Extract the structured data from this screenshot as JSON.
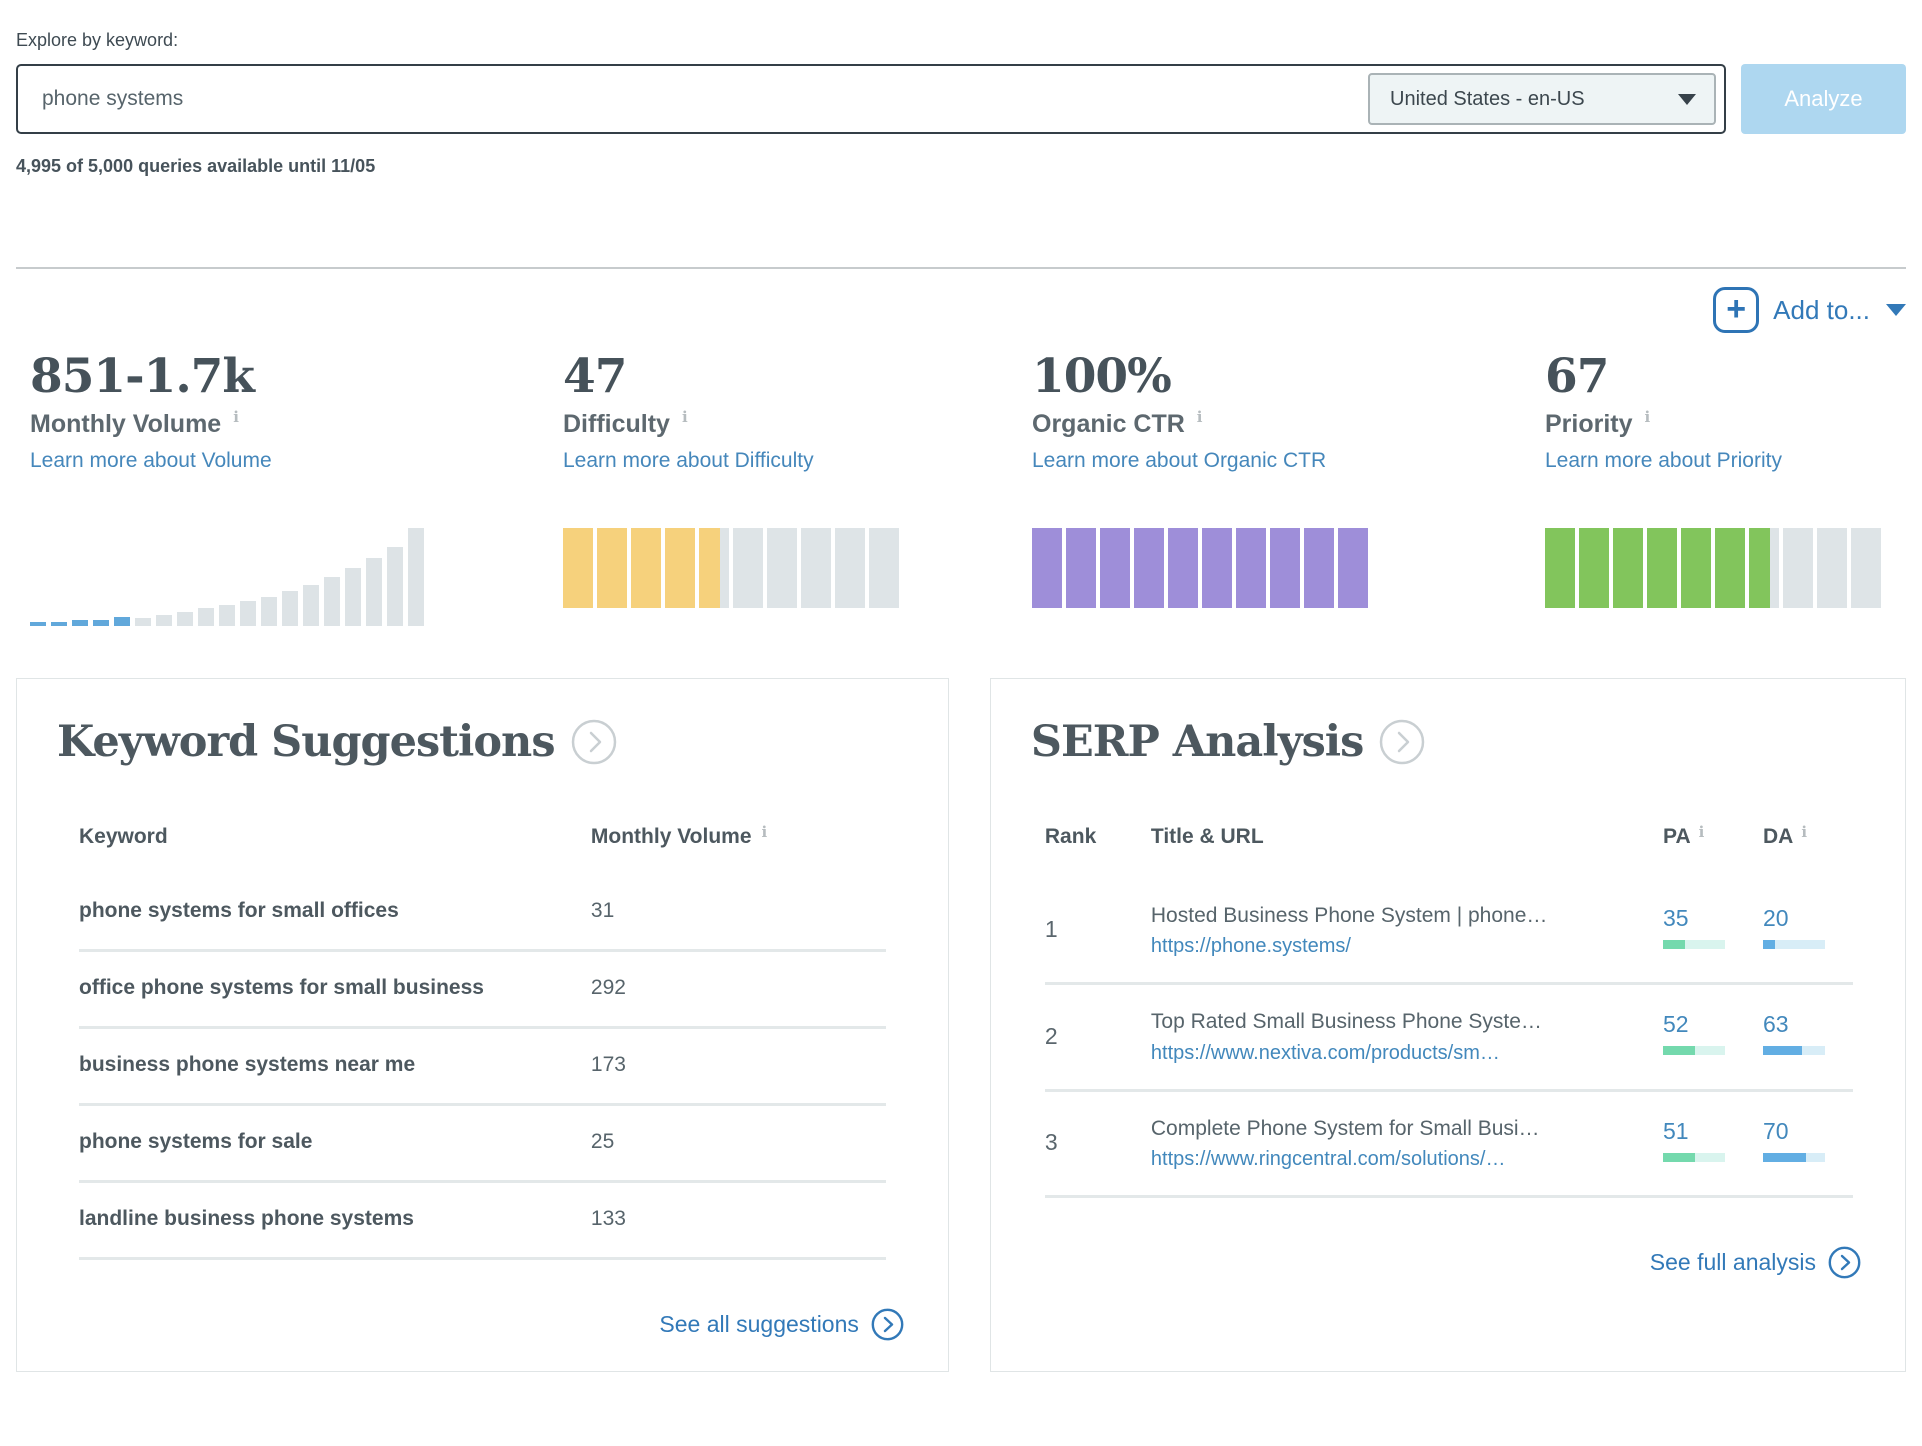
{
  "explore": {
    "label": "Explore by keyword:",
    "keyword_value": "phone systems",
    "locale_selected": "United States - en-US",
    "analyze_label": "Analyze",
    "quota_text": "4,995 of 5,000 queries available until 11/05"
  },
  "add_to": {
    "label": "Add to...",
    "plus": "+"
  },
  "info_icon_glyph": "i",
  "metrics": [
    {
      "value": "851-1.7k",
      "label": "Monthly Volume",
      "learn_link": "Learn more about Volume"
    },
    {
      "value": "47",
      "label": "Difficulty",
      "learn_link": "Learn more about Difficulty"
    },
    {
      "value": "100%",
      "label": "Organic CTR",
      "learn_link": "Learn more about Organic CTR"
    },
    {
      "value": "67",
      "label": "Priority",
      "learn_link": "Learn more about Priority"
    }
  ],
  "chart_data": [
    {
      "id": "monthly-volume-histogram",
      "type": "bar",
      "title": "Monthly Volume distribution (volume bucket highlighted)",
      "values": [
        4,
        4,
        6,
        6,
        9,
        8,
        11,
        14,
        18,
        21,
        25,
        30,
        36,
        42,
        50,
        59,
        69,
        81,
        100
      ],
      "highlighted_bars": 5,
      "highlight_color": "#61a8db",
      "bar_color": "#dde3e6",
      "ylim": [
        0,
        100
      ],
      "grid": false
    },
    {
      "id": "difficulty-gauge",
      "type": "bar",
      "label": "Difficulty",
      "value": 47,
      "max": 100,
      "segments": 10,
      "fill_color": "#f6d17c",
      "track_color": "#dee4e7"
    },
    {
      "id": "organic-ctr-gauge",
      "type": "bar",
      "label": "Organic CTR",
      "value": 100,
      "max": 100,
      "segments": 10,
      "fill_color": "#9e8ed9",
      "track_color": "#dee4e7"
    },
    {
      "id": "priority-gauge",
      "type": "bar",
      "label": "Priority",
      "value": 67,
      "max": 100,
      "segments": 10,
      "fill_color": "#82c55c",
      "track_color": "#dee4e7"
    }
  ],
  "keyword_suggestions": {
    "title": "Keyword Suggestions",
    "headers": {
      "keyword": "Keyword",
      "volume": "Monthly Volume"
    },
    "rows": [
      {
        "keyword": "phone systems for small offices",
        "volume": "31"
      },
      {
        "keyword": "office phone systems for small business",
        "volume": "292"
      },
      {
        "keyword": "business phone systems near me",
        "volume": "173"
      },
      {
        "keyword": "phone systems for sale",
        "volume": "25"
      },
      {
        "keyword": "landline business phone systems",
        "volume": "133"
      }
    ],
    "see_all_label": "See all suggestions"
  },
  "serp_analysis": {
    "title": "SERP Analysis",
    "headers": {
      "rank": "Rank",
      "title_url": "Title & URL",
      "pa": "PA",
      "da": "DA"
    },
    "rows": [
      {
        "rank": "1",
        "title": "Hosted Business Phone System | phone…",
        "url": "https://phone.systems/",
        "pa": 35,
        "da": 20
      },
      {
        "rank": "2",
        "title": "Top Rated Small Business Phone Syste…",
        "url": "https://www.nextiva.com/products/sm…",
        "pa": 52,
        "da": 63
      },
      {
        "rank": "3",
        "title": "Complete Phone System for Small Busi…",
        "url": "https://www.ringcentral.com/solutions/…",
        "pa": 51,
        "da": 70
      }
    ],
    "see_full_label": "See full analysis"
  },
  "colors": {
    "pa_fill": "#74d9ad",
    "pa_track": "#d9f4ee",
    "da_fill": "#62aee3",
    "da_track": "#d8edf7",
    "link_blue": "#3279b8"
  }
}
